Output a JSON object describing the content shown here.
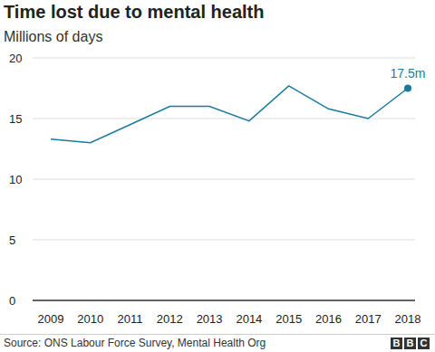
{
  "chart_data": {
    "type": "line",
    "title": "Time lost due to mental health",
    "subtitle": "Millions of days",
    "categories": [
      "2009",
      "2010",
      "2011",
      "2012",
      "2013",
      "2014",
      "2015",
      "2016",
      "2017",
      "2018"
    ],
    "values": [
      13.3,
      13.0,
      14.5,
      16.0,
      16.0,
      14.8,
      17.7,
      15.8,
      15.0,
      17.5
    ],
    "value_labels": [
      null,
      null,
      null,
      null,
      null,
      null,
      null,
      null,
      null,
      "17.5m"
    ],
    "color": "#1a7a9c",
    "ylim": [
      0,
      20
    ],
    "yticks": [
      0,
      5,
      10,
      15,
      20
    ],
    "grid": true,
    "source": "Source: ONS Labour Force Survey, Mental Health Org",
    "logo": "BBC"
  }
}
